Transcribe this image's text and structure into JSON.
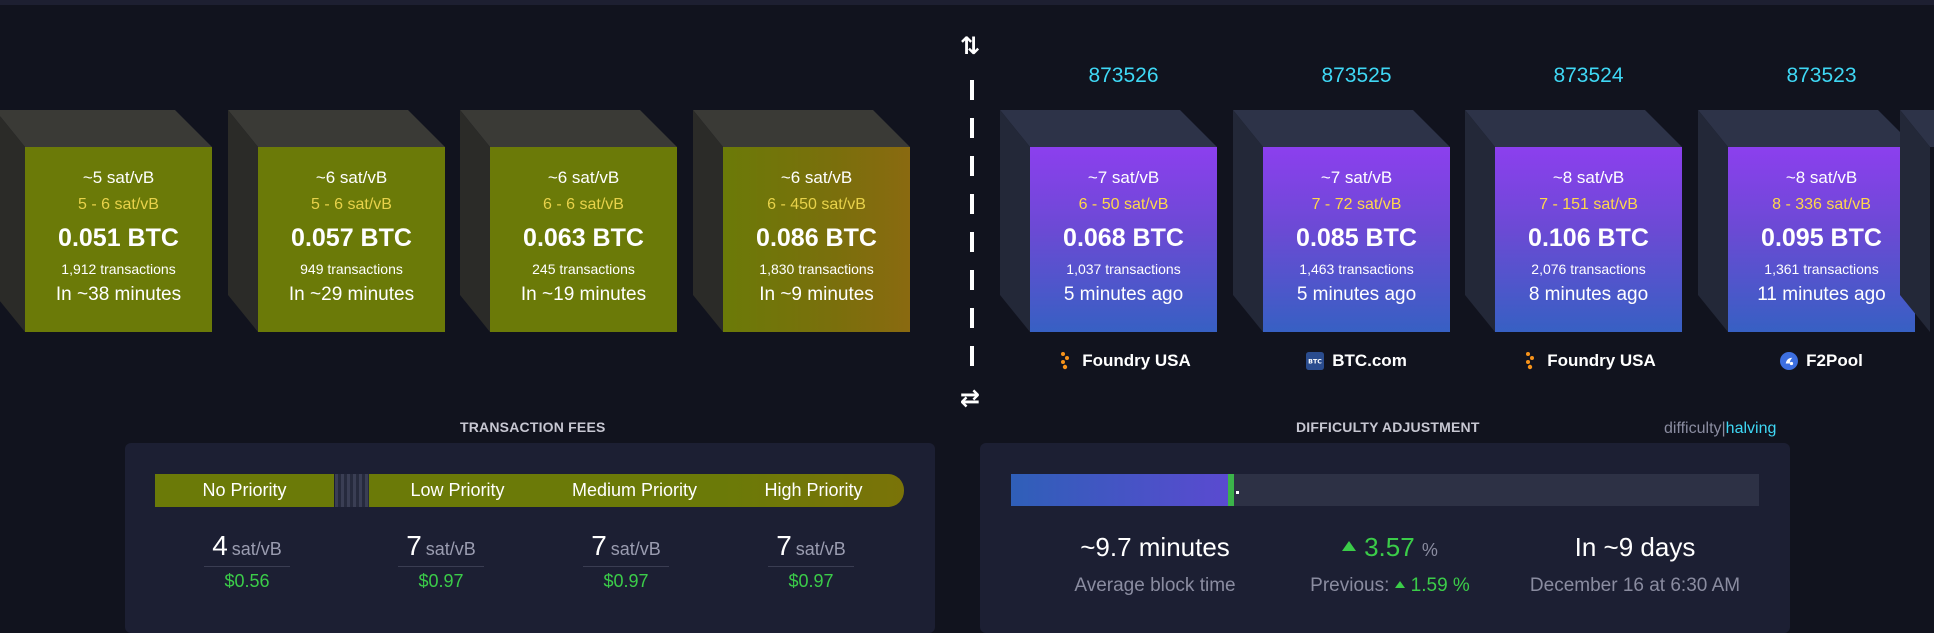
{
  "pending_blocks": [
    {
      "median_fee": "~5 sat/vB",
      "fee_range": "5 - 6 sat/vB",
      "total_btc": "0.051 BTC",
      "tx_count": "1,912 transactions",
      "eta": "In ~38 minutes"
    },
    {
      "median_fee": "~6 sat/vB",
      "fee_range": "5 - 6 sat/vB",
      "total_btc": "0.057 BTC",
      "tx_count": "949 transactions",
      "eta": "In ~29 minutes"
    },
    {
      "median_fee": "~6 sat/vB",
      "fee_range": "6 - 6 sat/vB",
      "total_btc": "0.063 BTC",
      "tx_count": "245 transactions",
      "eta": "In ~19 minutes"
    },
    {
      "median_fee": "~6 sat/vB",
      "fee_range": "6 - 450 sat/vB",
      "total_btc": "0.086 BTC",
      "tx_count": "1,830 transactions",
      "eta": "In ~9 minutes"
    }
  ],
  "mined_blocks": [
    {
      "height": "873526",
      "median_fee": "~7 sat/vB",
      "fee_range": "6 - 50 sat/vB",
      "total_btc": "0.068 BTC",
      "tx_count": "1,037 transactions",
      "age": "5 minutes ago",
      "pool": "Foundry USA",
      "pool_icon": "foundry-icon"
    },
    {
      "height": "873525",
      "median_fee": "~7 sat/vB",
      "fee_range": "7 - 72 sat/vB",
      "total_btc": "0.085 BTC",
      "tx_count": "1,463 transactions",
      "age": "5 minutes ago",
      "pool": "BTC.com",
      "pool_icon": "btccom-icon"
    },
    {
      "height": "873524",
      "median_fee": "~8 sat/vB",
      "fee_range": "7 - 151 sat/vB",
      "total_btc": "0.106 BTC",
      "tx_count": "2,076 transactions",
      "age": "8 minutes ago",
      "pool": "Foundry USA",
      "pool_icon": "foundry-icon"
    },
    {
      "height": "873523",
      "median_fee": "~8 sat/vB",
      "fee_range": "8 - 336 sat/vB",
      "total_btc": "0.095 BTC",
      "tx_count": "1,361 transactions",
      "age": "11 minutes ago",
      "pool": "F2Pool",
      "pool_icon": "f2pool-icon"
    }
  ],
  "fees": {
    "title": "TRANSACTION FEES",
    "labels": {
      "no_priority": "No Priority",
      "low": "Low Priority",
      "medium": "Medium Priority",
      "high": "High Priority"
    },
    "values": [
      {
        "rate": "4",
        "unit": "sat/vB",
        "usd": "$0.56"
      },
      {
        "rate": "7",
        "unit": "sat/vB",
        "usd": "$0.97"
      },
      {
        "rate": "7",
        "unit": "sat/vB",
        "usd": "$0.97"
      },
      {
        "rate": "7",
        "unit": "sat/vB",
        "usd": "$0.97"
      }
    ]
  },
  "difficulty": {
    "title": "DIFFICULTY ADJUSTMENT",
    "toggle_difficulty": "difficulty",
    "toggle_sep": "|",
    "toggle_halving": "halving",
    "progress_fraction": 0.29,
    "avg_block_time": "~9.7 minutes",
    "avg_block_time_label": "Average block time",
    "change": "3.57",
    "change_unit": "%",
    "previous_label": "Previous:",
    "previous_change": "1.59",
    "previous_unit": "%",
    "eta": "In ~9 days",
    "eta_date": "December 16 at 6:30 AM"
  },
  "colors": {
    "accent_cyan": "#3fd8f5",
    "positive_green": "#3bcc49",
    "fee_yellow": "#ffd84a"
  }
}
